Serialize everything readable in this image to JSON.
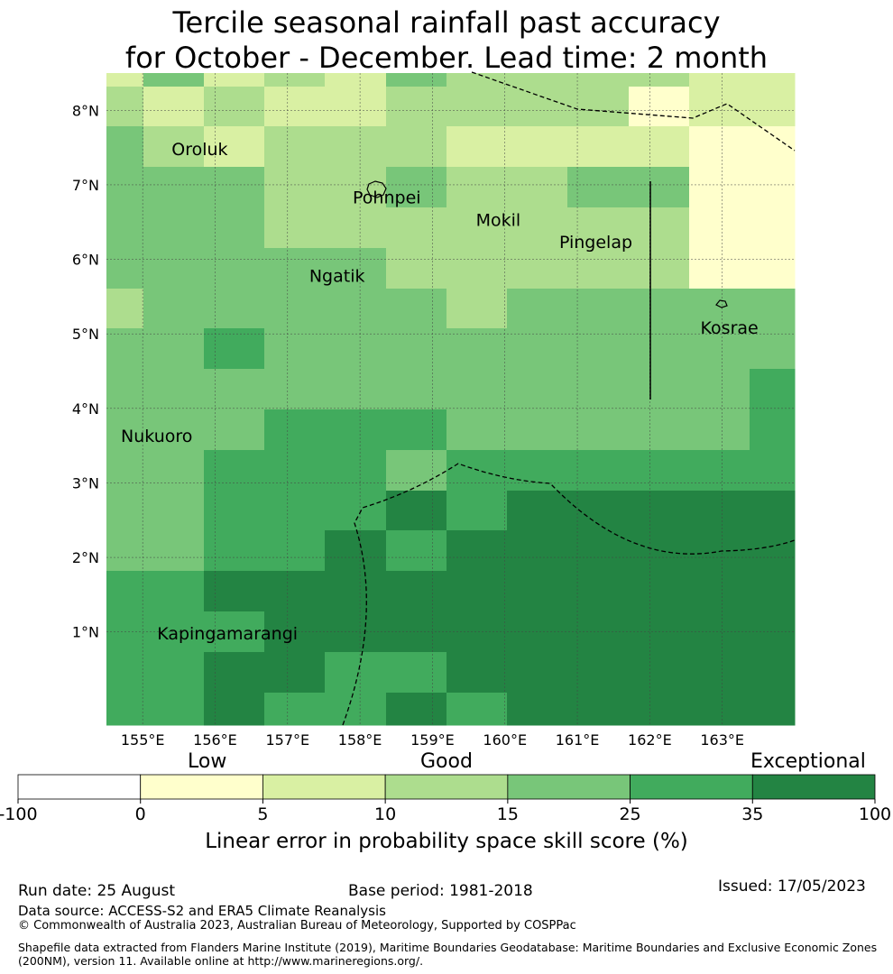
{
  "title_line1": "Tercile seasonal rainfall past accuracy",
  "title_line2": "for October - December. Lead time: 2 month",
  "map": {
    "lon_range": [
      154.5,
      164.0
    ],
    "lat_range": [
      -0.25,
      8.5
    ],
    "lon_ticks": [
      "155°E",
      "156°E",
      "157°E",
      "158°E",
      "159°E",
      "160°E",
      "161°E",
      "162°E",
      "163°E"
    ],
    "lat_ticks": [
      "8°N",
      "7°N",
      "6°N",
      "5°N",
      "4°N",
      "3°N",
      "2°N",
      "1°N"
    ],
    "grid_levels": [
      [
        2,
        4,
        2,
        3,
        2,
        4,
        3,
        3,
        3,
        3,
        2,
        2
      ],
      [
        3,
        2,
        3,
        2,
        2,
        3,
        3,
        3,
        3,
        1,
        2,
        2
      ],
      [
        4,
        3,
        2,
        3,
        3,
        3,
        2,
        2,
        2,
        2,
        1,
        1
      ],
      [
        4,
        4,
        4,
        3,
        3,
        4,
        3,
        3,
        4,
        4,
        1,
        1
      ],
      [
        4,
        4,
        4,
        3,
        3,
        3,
        3,
        3,
        3,
        3,
        1,
        1
      ],
      [
        4,
        4,
        4,
        4,
        4,
        3,
        3,
        3,
        3,
        3,
        1,
        1
      ],
      [
        3,
        4,
        4,
        4,
        4,
        4,
        3,
        4,
        4,
        4,
        4,
        4
      ],
      [
        4,
        4,
        5,
        4,
        4,
        4,
        4,
        4,
        4,
        4,
        4,
        4
      ],
      [
        4,
        4,
        4,
        4,
        4,
        4,
        4,
        4,
        4,
        4,
        4,
        5
      ],
      [
        4,
        4,
        4,
        5,
        5,
        5,
        4,
        4,
        4,
        4,
        4,
        5
      ],
      [
        4,
        4,
        5,
        5,
        5,
        4,
        5,
        5,
        5,
        5,
        5,
        5
      ],
      [
        4,
        4,
        5,
        5,
        5,
        6,
        5,
        6,
        6,
        6,
        6,
        6
      ],
      [
        4,
        4,
        5,
        5,
        6,
        5,
        6,
        6,
        6,
        6,
        6,
        6
      ],
      [
        5,
        5,
        6,
        6,
        6,
        6,
        6,
        6,
        6,
        6,
        6,
        6
      ],
      [
        5,
        5,
        5,
        6,
        6,
        6,
        6,
        6,
        6,
        6,
        6,
        6
      ],
      [
        5,
        5,
        6,
        6,
        5,
        5,
        6,
        6,
        6,
        6,
        6,
        6
      ],
      [
        5,
        5,
        6,
        5,
        5,
        6,
        5,
        6,
        6,
        6,
        6,
        6
      ]
    ],
    "places": [
      {
        "name": "Oroluk",
        "lon": 155.3,
        "lat": 7.4
      },
      {
        "name": "Pohnpei",
        "lon": 157.8,
        "lat": 6.75
      },
      {
        "name": "Mokil",
        "lon": 159.5,
        "lat": 6.45
      },
      {
        "name": "Pingelap",
        "lon": 160.65,
        "lat": 6.15
      },
      {
        "name": "Ngatik",
        "lon": 157.2,
        "lat": 5.7
      },
      {
        "name": "Kosrae",
        "lon": 162.6,
        "lat": 5.0
      },
      {
        "name": "Nukuoro",
        "lon": 154.6,
        "lat": 3.55
      },
      {
        "name": "Kapingamarangi",
        "lon": 155.1,
        "lat": 0.9
      }
    ]
  },
  "legend": {
    "categories": [
      "Low",
      "Good",
      "Exceptional"
    ],
    "boundaries": [
      "-100",
      "0",
      "5",
      "10",
      "15",
      "25",
      "35",
      "100"
    ],
    "colors": [
      "#ffffff",
      "#ffffcc",
      "#d9f0a3",
      "#addd8e",
      "#78c679",
      "#41ab5d",
      "#238443"
    ],
    "label": "Linear error in probability space skill score (%)"
  },
  "footer": {
    "run_date": "Run date: 25 August",
    "base_period": "Base period: 1981-2018",
    "issued": "Issued: 17/05/2023",
    "data_source": "Data source: ACCESS-S2 and ERA5 Climate Reanalysis",
    "copyright": "© Commonwealth of Australia 2023, Australian Bureau of Meteorology, Supported by COSPPac",
    "shapefile": "Shapefile data extracted from Flanders Marine Institute (2019), Maritime Boundaries Geodatabase: Maritime Boundaries and Exclusive Economic Zones (200NM), version 11. Available online at http://www.marineregions.org/."
  }
}
